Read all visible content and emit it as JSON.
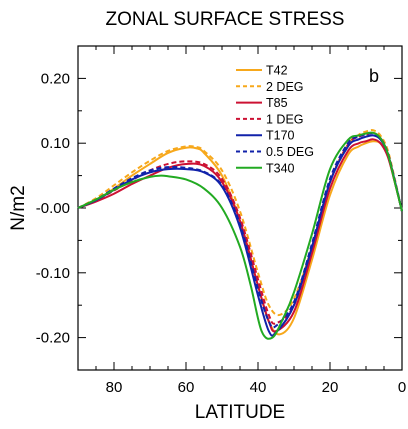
{
  "chart_data": {
    "type": "line",
    "title": "ZONAL SURFACE STRESS",
    "xlabel": "LATITUDE",
    "ylabel": "N/m2",
    "panel_label": "b",
    "xlim": [
      90,
      0
    ],
    "ylim": [
      -0.25,
      0.25
    ],
    "x_reversed": true,
    "grid": false,
    "legend_position": "top-right",
    "x_ticks": [
      80,
      60,
      40,
      20,
      0
    ],
    "x_tick_labels": [
      "80",
      "60",
      "40",
      "20",
      "0"
    ],
    "y_ticks": [
      0.2,
      0.1,
      0.0,
      -0.1,
      -0.2
    ],
    "y_tick_labels": [
      "0.20",
      "0.10",
      "-0.00",
      "-0.10",
      "-0.20"
    ],
    "series": [
      {
        "name": "T42",
        "color": "#f7a81b",
        "dash": "solid",
        "x": [
          90,
          85,
          80,
          75,
          70,
          65,
          60,
          57,
          55,
          50,
          45,
          40,
          37,
          34,
          30,
          25,
          20,
          15,
          12,
          10,
          8,
          6,
          4,
          2,
          0
        ],
        "y": [
          0.0,
          0.012,
          0.03,
          0.05,
          0.068,
          0.085,
          0.093,
          0.092,
          0.085,
          0.05,
          -0.02,
          -0.12,
          -0.175,
          -0.195,
          -0.17,
          -0.08,
          0.02,
          0.082,
          0.095,
          0.1,
          0.103,
          0.1,
          0.082,
          0.04,
          -0.005
        ]
      },
      {
        "name": "2 DEG",
        "color": "#f7a81b",
        "dash": "dashed",
        "x": [
          90,
          85,
          80,
          75,
          70,
          65,
          60,
          57,
          55,
          50,
          45,
          40,
          37,
          34,
          30,
          25,
          20,
          15,
          12,
          10,
          8,
          6,
          4,
          2,
          0
        ],
        "y": [
          0.0,
          0.015,
          0.035,
          0.055,
          0.073,
          0.088,
          0.095,
          0.094,
          0.088,
          0.058,
          -0.005,
          -0.1,
          -0.15,
          -0.165,
          -0.14,
          -0.06,
          0.04,
          0.098,
          0.113,
          0.118,
          0.12,
          0.112,
          0.09,
          0.045,
          -0.005
        ]
      },
      {
        "name": "T85",
        "color": "#cc1133",
        "dash": "solid",
        "x": [
          90,
          85,
          80,
          75,
          70,
          65,
          60,
          55,
          50,
          45,
          40,
          37,
          35,
          30,
          25,
          20,
          15,
          12,
          10,
          8,
          6,
          4,
          2,
          0
        ],
        "y": [
          0.0,
          0.01,
          0.022,
          0.037,
          0.05,
          0.062,
          0.068,
          0.065,
          0.04,
          -0.02,
          -0.12,
          -0.175,
          -0.19,
          -0.16,
          -0.07,
          0.03,
          0.088,
          0.1,
          0.103,
          0.106,
          0.1,
          0.08,
          0.04,
          -0.005
        ]
      },
      {
        "name": "1 DEG",
        "color": "#cc1133",
        "dash": "dashed",
        "x": [
          90,
          85,
          80,
          75,
          70,
          65,
          60,
          55,
          50,
          45,
          40,
          37,
          35,
          30,
          25,
          20,
          15,
          12,
          10,
          8,
          6,
          4,
          2,
          0
        ],
        "y": [
          0.0,
          0.012,
          0.027,
          0.043,
          0.058,
          0.068,
          0.072,
          0.068,
          0.045,
          -0.015,
          -0.11,
          -0.165,
          -0.178,
          -0.15,
          -0.06,
          0.04,
          0.098,
          0.11,
          0.113,
          0.116,
          0.108,
          0.085,
          0.04,
          -0.005
        ]
      },
      {
        "name": "T170",
        "color": "#1122aa",
        "dash": "solid",
        "x": [
          90,
          85,
          80,
          75,
          70,
          65,
          60,
          55,
          50,
          45,
          40,
          37,
          35,
          30,
          25,
          20,
          15,
          12,
          10,
          8,
          6,
          4,
          2,
          0
        ],
        "y": [
          0.0,
          0.012,
          0.028,
          0.044,
          0.055,
          0.06,
          0.06,
          0.055,
          0.033,
          -0.03,
          -0.135,
          -0.19,
          -0.192,
          -0.15,
          -0.06,
          0.04,
          0.095,
          0.106,
          0.11,
          0.112,
          0.106,
          0.085,
          0.042,
          -0.005
        ]
      },
      {
        "name": "0.5 DEG",
        "color": "#1122aa",
        "dash": "dashed",
        "x": [
          90,
          85,
          80,
          75,
          70,
          65,
          60,
          55,
          50,
          45,
          40,
          37,
          35,
          30,
          25,
          20,
          15,
          12,
          10,
          8,
          6,
          4,
          2,
          0
        ],
        "y": [
          0.0,
          0.013,
          0.03,
          0.046,
          0.058,
          0.063,
          0.062,
          0.056,
          0.035,
          -0.025,
          -0.125,
          -0.175,
          -0.182,
          -0.145,
          -0.055,
          0.045,
          0.1,
          0.11,
          0.114,
          0.115,
          0.108,
          0.086,
          0.042,
          -0.005
        ]
      },
      {
        "name": "T340",
        "color": "#22aa22",
        "dash": "solid",
        "x": [
          90,
          85,
          80,
          75,
          70,
          67,
          65,
          60,
          55,
          50,
          45,
          42,
          39,
          36,
          33,
          30,
          25,
          20,
          15,
          12,
          10,
          8,
          6,
          4,
          2,
          0
        ],
        "y": [
          0.0,
          0.013,
          0.028,
          0.04,
          0.048,
          0.05,
          0.049,
          0.044,
          0.03,
          0.0,
          -0.06,
          -0.12,
          -0.19,
          -0.2,
          -0.17,
          -0.13,
          -0.04,
          0.06,
          0.105,
          0.112,
          0.115,
          0.116,
          0.108,
          0.085,
          0.04,
          -0.005
        ]
      }
    ]
  }
}
